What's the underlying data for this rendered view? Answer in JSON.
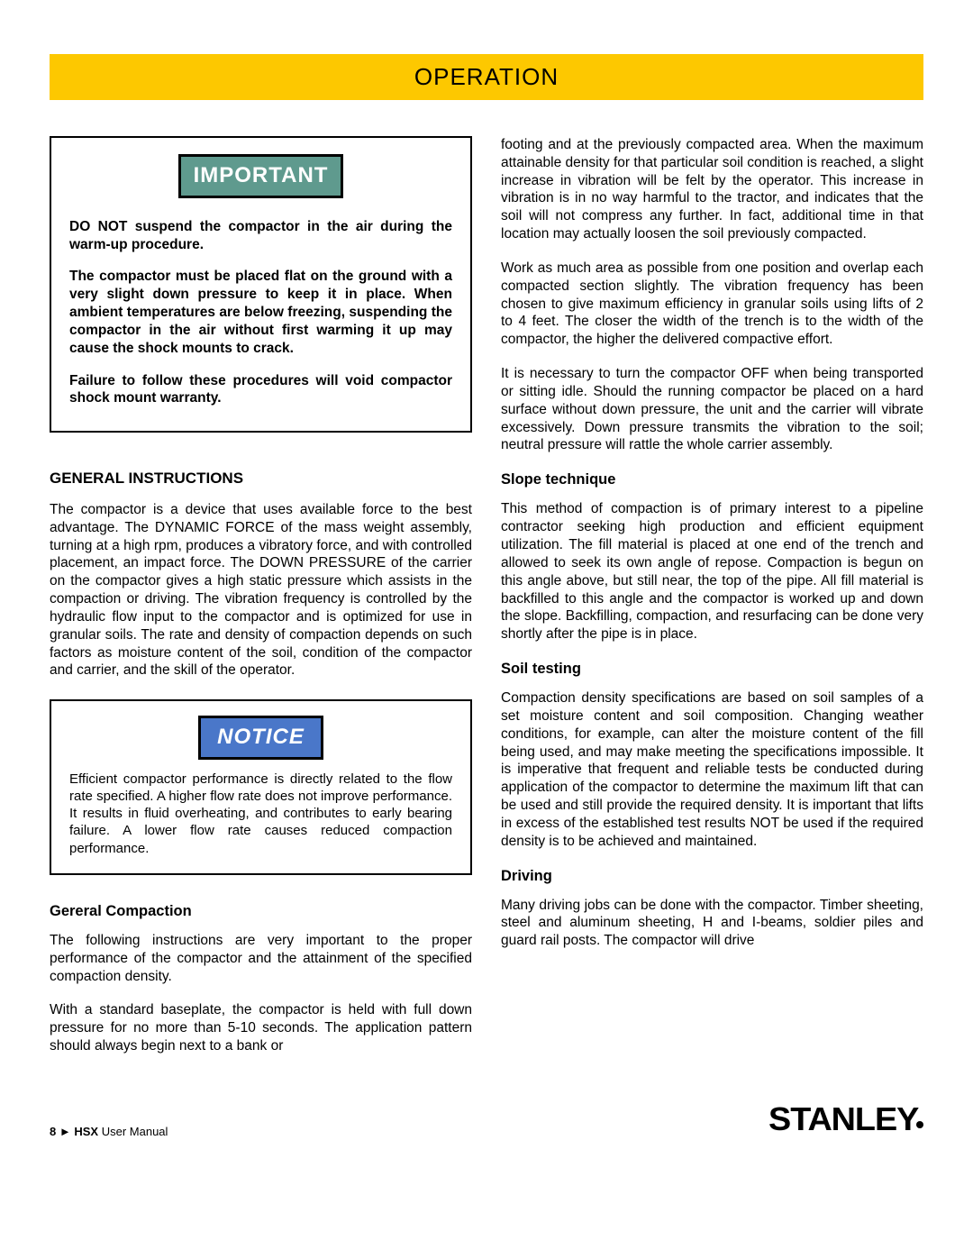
{
  "banner": {
    "title": "OPERATION"
  },
  "labels": {
    "important": "IMPORTANT",
    "notice": "NOTICE"
  },
  "important": {
    "p1": "DO NOT suspend the compactor in the air during the warm-up procedure.",
    "p2": "The compactor must be placed flat on the ground with a very slight down pressure to keep it in place.  When ambient temperatures are below freezing, suspending the compactor in the air without first warming it up may cause the shock mounts to crack.",
    "p3": "Failure to follow these procedures will void compactor shock mount warranty."
  },
  "headings": {
    "general_instructions": "GENERAL INSTRUCTIONS",
    "general_compaction": "Gereral Compaction",
    "slope": "Slope technique",
    "soil": "Soil testing",
    "driving": "Driving"
  },
  "left": {
    "gen_instr_p": "The compactor is a device that uses available force to the best advantage.  The DYNAMIC FORCE of the mass weight assembly, turning at a high rpm, produces a vibratory force, and with controlled placement, an impact force. The DOWN PRESSURE of the carrier on the compactor gives a high static pressure which assists in the compaction or driving. The vibration frequency is controlled by the hydraulic flow input to the compactor and is optimized for use in granular soils. The rate and density of compaction depends on such factors as moisture content of the soil, condition of the compactor and carrier, and the skill of the operator.",
    "notice_p": "Efficient compactor performance is directly related to the flow rate specified.  A higher flow rate does not improve performance.  It results in fluid overheating, and contributes to early bearing failure.  A lower flow rate causes reduced compaction performance.",
    "gen_comp_p1": "The following instructions are very important to the proper performance of the compactor and the attainment of the specified compaction density.",
    "gen_comp_p2": "With a standard baseplate, the compactor is held with full down pressure for no more than 5-10 seconds.  The application pattern should always begin next to a bank or"
  },
  "right": {
    "cont_p1": "footing and at the previously compacted area.  When the maximum attainable density for that particular soil condition is reached, a slight increase in vibration will be felt by the operator.  This increase in vibration is in no way harmful to the tractor, and indicates that the soil will not compress any further.  In fact, additional time in that location may actually loosen the soil previously compacted.",
    "cont_p2": "Work as much area as possible from one position and overlap each compacted section slightly.  The vibration frequency has been chosen to give maximum efficiency in granular soils using lifts of 2 to 4 feet. The closer the width of the trench is to the width of the compactor, the higher the delivered compactive effort.",
    "cont_p3": "It is necessary to turn the compactor OFF when being transported or sitting idle.  Should the running compactor be placed on a hard surface without down pressure, the unit and the carrier will vibrate excessively.  Down pressure transmits the vibration to the soil; neutral pressure will rattle the whole carrier assembly.",
    "slope_p": "This method of compaction is of primary interest to a pipeline contractor seeking high production and efficient equipment utilization.  The fill material is placed at one end of the trench and allowed to seek its own angle of repose.  Compaction is begun on this angle above, but still near, the top of the pipe.  All fill material is backfilled to this angle and the compactor is worked up and down the slope.  Backfilling, compaction, and resurfacing can be done very shortly after the pipe is in place.",
    "soil_p": "Compaction density specifications are based on soil samples of a set moisture content and soil composition. Changing weather conditions, for example, can alter the moisture content of the fill being used, and may make meeting the specifications impossible.  It is imperative that frequent and reliable tests be conducted during application of the compactor to determine the maximum lift that can be used and still provide the required density.  It is important that lifts in excess of the established test results NOT be used if the required density is to be achieved and maintained.",
    "driving_p": "Many driving jobs can be done with the compactor. Timber sheeting, steel and aluminum sheeting, H and I-beams, soldier piles and guard rail posts.  The compactor will drive"
  },
  "footer": {
    "page_num": "8",
    "tri": "►",
    "product": "HSX",
    "label": "User Manual",
    "brand": "STANLEY"
  }
}
